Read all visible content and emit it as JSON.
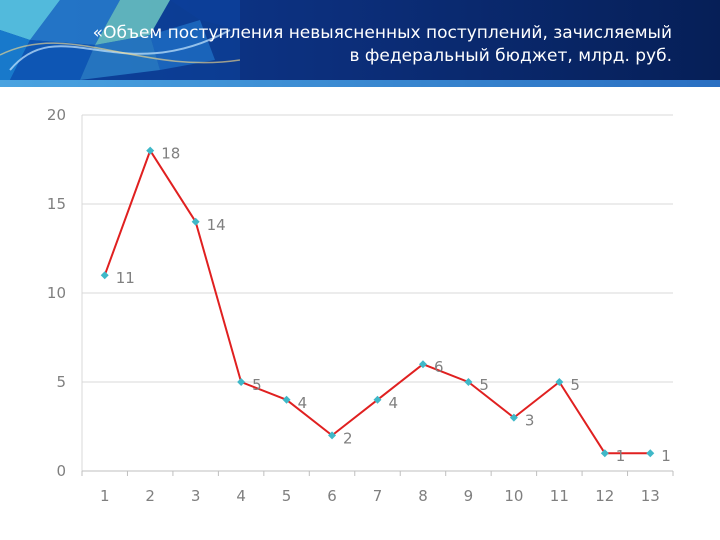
{
  "slide": {
    "title_line1": "«Объем поступления невыясненных поступлений, зачисляемый",
    "title_line2": "в федеральный бюджет, млрд. руб."
  },
  "colors": {
    "header_bg": "#0b3a93",
    "line": "#e02020",
    "marker": "#3fb8c8",
    "grid": "#d9d9d9",
    "text": "#7f7f7f"
  },
  "chart_data": {
    "type": "line",
    "categories": [
      "1",
      "2",
      "3",
      "4",
      "5",
      "6",
      "7",
      "8",
      "9",
      "10",
      "11",
      "12",
      "13"
    ],
    "series": [
      {
        "values": [
          11,
          18,
          14,
          5,
          4,
          2,
          4,
          6,
          5,
          3,
          5,
          1,
          1
        ]
      }
    ],
    "data_labels": true,
    "title": "",
    "xlabel": "",
    "ylabel": "",
    "ylim": [
      0,
      20
    ],
    "yticks": [
      0,
      5,
      10,
      15,
      20
    ],
    "grid": "horizontal",
    "legend": "none"
  }
}
